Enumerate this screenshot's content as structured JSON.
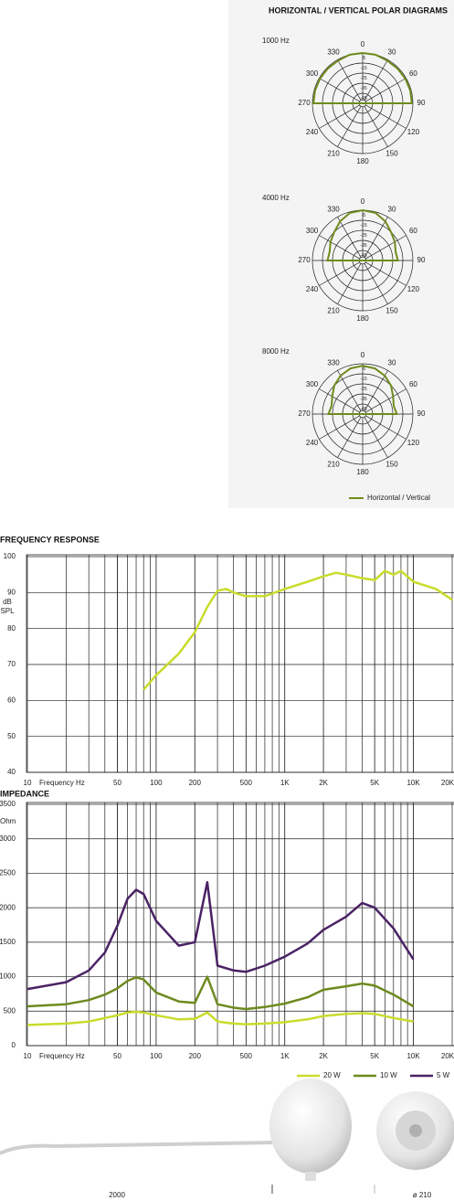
{
  "chart_data": [
    {
      "type": "polar",
      "title": "HORIZONTAL / VERTICAL POLAR DIAGRAMS",
      "rlim": [
        -50,
        0
      ],
      "rticks": [
        -5,
        -15,
        -25,
        -35,
        -45
      ],
      "thetaticks": [
        0,
        30,
        60,
        90,
        120,
        150,
        180,
        210,
        240,
        270,
        300,
        330
      ],
      "theta": [
        270,
        285,
        300,
        315,
        330,
        345,
        0,
        15,
        30,
        45,
        60,
        75,
        90
      ],
      "series": [
        {
          "name": "Horizontal / Vertical",
          "color": "#6f8b1e"
        }
      ],
      "diagrams": [
        {
          "label": "1000 Hz",
          "r": [
            -1,
            -1,
            -1,
            -1,
            -1,
            0,
            0,
            0,
            -1,
            -1,
            -1,
            -1,
            -1
          ]
        },
        {
          "label": "4000 Hz",
          "r": [
            -15,
            -16,
            -13,
            -10,
            -5,
            -1,
            0,
            -1,
            -5,
            -10,
            -13,
            -16,
            -15
          ]
        },
        {
          "label": "8000 Hz",
          "r": [
            -16,
            -18,
            -15,
            -10,
            -6,
            -3,
            -2,
            -3,
            -6,
            -10,
            -15,
            -18,
            -16
          ]
        }
      ]
    },
    {
      "type": "line",
      "title": "FREQUENCY RESPONSE",
      "xlabel": "Frequency Hz",
      "ylabel": "dB SPL",
      "log_x": true,
      "grid": true,
      "xlim": [
        10,
        20000
      ],
      "ylim": [
        40,
        100
      ],
      "xticks": [
        10,
        50,
        100,
        200,
        500,
        {
          "value": 1000,
          "label": "1K"
        },
        {
          "value": 2000,
          "label": "2K"
        },
        {
          "value": 5000,
          "label": "5K"
        },
        {
          "value": 10000,
          "label": "10K"
        },
        {
          "value": 20000,
          "label": "20K"
        }
      ],
      "yticks": [
        40,
        50,
        60,
        70,
        80,
        90,
        100
      ],
      "x": [
        80,
        100,
        150,
        200,
        250,
        300,
        350,
        400,
        500,
        700,
        1000,
        1500,
        2000,
        2500,
        3000,
        4000,
        5000,
        6000,
        7000,
        8000,
        10000,
        15000,
        20000
      ],
      "series": [
        {
          "color": "#c9dc2c",
          "values": [
            63,
            67,
            73,
            79,
            86,
            90.5,
            91,
            90,
            89,
            89,
            91,
            93,
            94.5,
            95.5,
            95,
            94,
            93.5,
            96,
            95,
            96,
            93,
            91,
            88
          ]
        }
      ]
    },
    {
      "type": "line",
      "title": "IMPEDANCE",
      "xlabel": "Frequency Hz",
      "ylabel": "Ohm",
      "log_x": true,
      "grid": true,
      "legend": "bottom-right",
      "xlim": [
        10,
        20000
      ],
      "ylim": [
        0,
        3500
      ],
      "xticks": [
        10,
        50,
        100,
        200,
        500,
        {
          "value": 1000,
          "label": "1K"
        },
        {
          "value": 2000,
          "label": "2K"
        },
        {
          "value": 5000,
          "label": "5K"
        },
        {
          "value": 10000,
          "label": "10K"
        },
        {
          "value": 20000,
          "label": "20K"
        }
      ],
      "yticks": [
        0,
        500,
        1000,
        1500,
        2000,
        2500,
        3000,
        3500
      ],
      "x": [
        10,
        20,
        30,
        40,
        50,
        60,
        70,
        80,
        100,
        150,
        200,
        250,
        300,
        400,
        500,
        700,
        1000,
        1500,
        2000,
        3000,
        4000,
        5000,
        7000,
        10000
      ],
      "series": [
        {
          "name": "20 W",
          "color": "#c9dc2c",
          "values": [
            300,
            320,
            350,
            400,
            440,
            480,
            490,
            480,
            440,
            380,
            390,
            480,
            350,
            320,
            310,
            320,
            340,
            380,
            430,
            460,
            470,
            460,
            400,
            350
          ]
        },
        {
          "name": "10 W",
          "color": "#6e8a1f",
          "values": [
            570,
            600,
            660,
            740,
            830,
            940,
            990,
            960,
            770,
            640,
            620,
            1000,
            600,
            550,
            530,
            560,
            610,
            700,
            810,
            860,
            900,
            870,
            740,
            570
          ]
        },
        {
          "name": "5 W",
          "color": "#4b2265",
          "values": [
            820,
            920,
            1090,
            1350,
            1740,
            2130,
            2260,
            2200,
            1810,
            1450,
            1500,
            2370,
            1160,
            1090,
            1070,
            1160,
            1290,
            1480,
            1680,
            1870,
            2070,
            2000,
            1700,
            1250
          ]
        }
      ]
    }
  ],
  "dimensions": {
    "length": "2000",
    "diameter": "ø 210"
  }
}
